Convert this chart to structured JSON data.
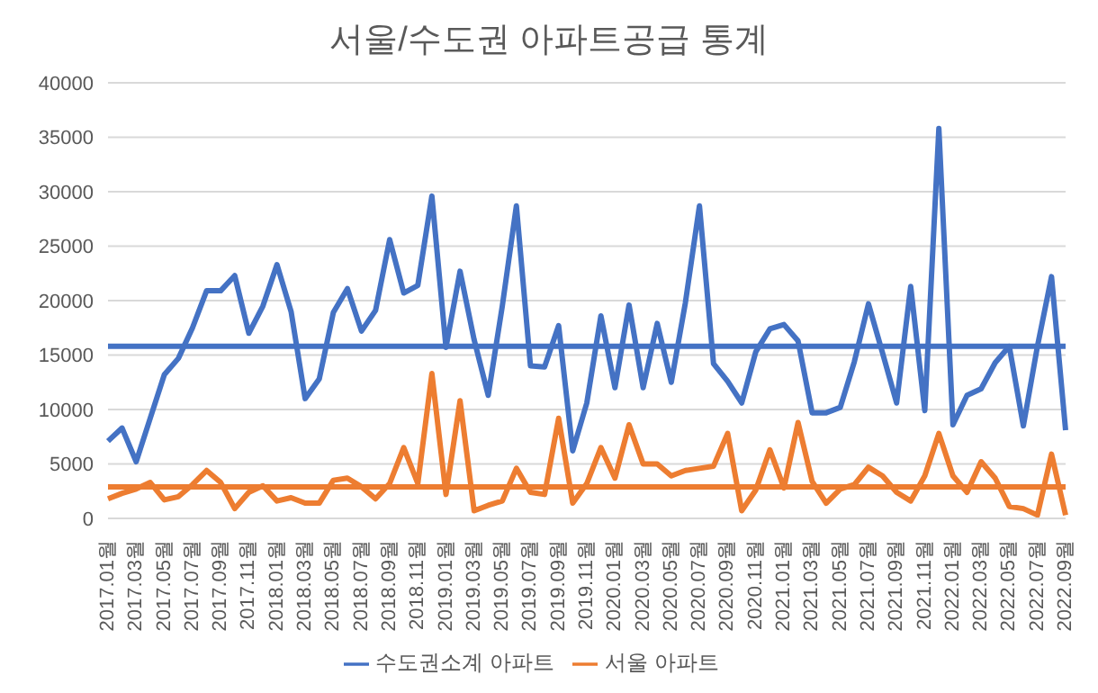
{
  "chart_data": {
    "type": "line",
    "title": "서울/수도권 아파트공급 통계",
    "categories": [
      "2017.01월",
      null,
      "2017.03월",
      null,
      "2017.05월",
      null,
      "2017.07월",
      null,
      "2017.09월",
      null,
      "2017.11월",
      null,
      "2018.01월",
      null,
      "2018.03월",
      null,
      "2018.05월",
      null,
      "2018.07월",
      null,
      "2018.09월",
      null,
      "2018.11월",
      null,
      "2019.01월",
      null,
      "2019.03월",
      null,
      "2019.05월",
      null,
      "2019.07월",
      null,
      "2019.09월",
      null,
      "2019.11월",
      null,
      "2020.01월",
      null,
      "2020.03월",
      null,
      "2020.05월",
      null,
      "2020.07월",
      null,
      "2020.09월",
      null,
      "2020.11월",
      null,
      "2021.01월",
      null,
      "2021.03월",
      null,
      "2021.05월",
      null,
      "2021.07월",
      null,
      "2021.09월",
      null,
      "2021.11월",
      null,
      "2022.01월",
      null,
      "2022.03월",
      null,
      "2022.05월",
      null,
      "2022.07월",
      null,
      "2022.09월"
    ],
    "series": [
      {
        "name": "수도권소계 아파트",
        "color": "#4472c4",
        "values": [
          7100,
          8300,
          5200,
          9200,
          13200,
          14700,
          17500,
          20900,
          20900,
          22300,
          17000,
          19500,
          23300,
          19000,
          11000,
          12800,
          18900,
          21100,
          17200,
          19100,
          25600,
          20700,
          21400,
          29600,
          15700,
          22700,
          16400,
          11300,
          19500,
          28700,
          14000,
          13900,
          17700,
          6200,
          10600,
          18600,
          12000,
          19600,
          12000,
          17900,
          12500,
          19800,
          28700,
          14200,
          12600,
          10600,
          15300,
          17400,
          17800,
          16300,
          9700,
          9700,
          10200,
          14400,
          19700,
          15200,
          10600,
          21300,
          9900,
          35800,
          8600,
          11300,
          11900,
          14300,
          15800,
          8500,
          15800,
          22200,
          8100
        ]
      },
      {
        "name": "서울 아파트",
        "color": "#ed7d31",
        "values": [
          1800,
          2300,
          2700,
          3300,
          1700,
          2000,
          3100,
          4400,
          3300,
          900,
          2400,
          3000,
          1600,
          1900,
          1400,
          1400,
          3500,
          3700,
          2900,
          1800,
          3200,
          6500,
          3200,
          13300,
          2200,
          10800,
          700,
          1200,
          1600,
          4600,
          2400,
          2200,
          9200,
          1400,
          3200,
          6500,
          3700,
          8600,
          5000,
          5000,
          3900,
          4400,
          4600,
          4800,
          7800,
          700,
          2600,
          6300,
          2800,
          8800,
          3400,
          1400,
          2700,
          3100,
          4700,
          3900,
          2400,
          1600,
          3900,
          7800,
          3900,
          2400,
          5200,
          3700,
          1100,
          900,
          300,
          5900,
          300
        ]
      }
    ],
    "ref_lines": [
      {
        "axis": "y",
        "value": 15800,
        "label": null,
        "color": "#4472c4"
      },
      {
        "axis": "y",
        "value": 2900,
        "label": null,
        "color": "#ed7d31"
      }
    ],
    "ylim": [
      0,
      40000
    ],
    "yticks": [
      0,
      5000,
      10000,
      15000,
      20000,
      25000,
      30000,
      35000,
      40000
    ],
    "grid": "y",
    "legend": "bottom",
    "marker": "none",
    "line_style": "solid"
  }
}
